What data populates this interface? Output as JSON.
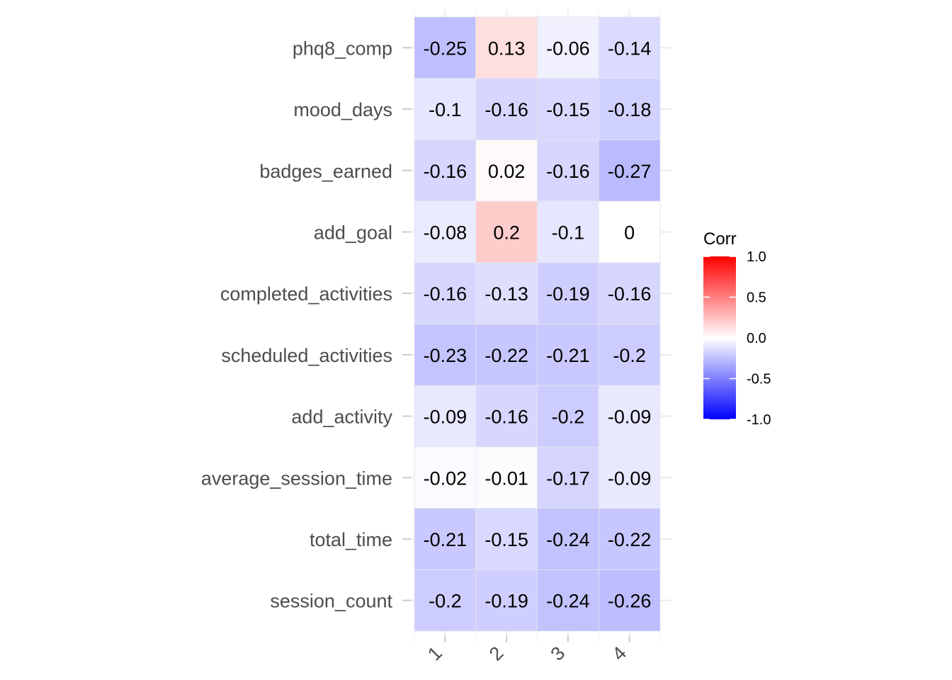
{
  "chart_data": {
    "type": "heatmap",
    "title": "",
    "xlabel": "",
    "ylabel": "",
    "x_categories": [
      "1",
      "2",
      "3",
      "4"
    ],
    "y_categories": [
      "phq8_comp",
      "mood_days",
      "badges_earned",
      "add_goal",
      "completed_activities",
      "scheduled_activities",
      "add_activity",
      "average_session_time",
      "total_time",
      "session_count"
    ],
    "values": [
      [
        -0.25,
        0.13,
        -0.06,
        -0.14
      ],
      [
        -0.1,
        -0.16,
        -0.15,
        -0.18
      ],
      [
        -0.16,
        0.02,
        -0.16,
        -0.27
      ],
      [
        -0.08,
        0.2,
        -0.1,
        0
      ],
      [
        -0.16,
        -0.13,
        -0.19,
        -0.16
      ],
      [
        -0.23,
        -0.22,
        -0.21,
        -0.2
      ],
      [
        -0.09,
        -0.16,
        -0.2,
        -0.09
      ],
      [
        -0.02,
        -0.01,
        -0.17,
        -0.09
      ],
      [
        -0.21,
        -0.15,
        -0.24,
        -0.22
      ],
      [
        -0.2,
        -0.19,
        -0.24,
        -0.26
      ]
    ],
    "cell_labels": [
      [
        "-0.25",
        "0.13",
        "-0.06",
        "-0.14"
      ],
      [
        "-0.1",
        "-0.16",
        "-0.15",
        "-0.18"
      ],
      [
        "-0.16",
        "0.02",
        "-0.16",
        "-0.27"
      ],
      [
        "-0.08",
        "0.2",
        "-0.1",
        "0"
      ],
      [
        "-0.16",
        "-0.13",
        "-0.19",
        "-0.16"
      ],
      [
        "-0.23",
        "-0.22",
        "-0.21",
        "-0.2"
      ],
      [
        "-0.09",
        "-0.16",
        "-0.2",
        "-0.09"
      ],
      [
        "-0.02",
        "-0.01",
        "-0.17",
        "-0.09"
      ],
      [
        "-0.21",
        "-0.15",
        "-0.24",
        "-0.22"
      ],
      [
        "-0.2",
        "-0.19",
        "-0.24",
        "-0.26"
      ]
    ],
    "color_scale": {
      "low": "#0000ff",
      "mid": "#ffffff",
      "high": "#ff0000",
      "range": [
        -1,
        1
      ]
    },
    "legend": {
      "title": "Corr",
      "placement": "right",
      "ticks": [
        "1.0",
        "0.5",
        "0.0",
        "-0.5",
        "-1.0"
      ],
      "tick_values": [
        1,
        0.5,
        0,
        -0.5,
        -1
      ]
    },
    "grid": true
  }
}
